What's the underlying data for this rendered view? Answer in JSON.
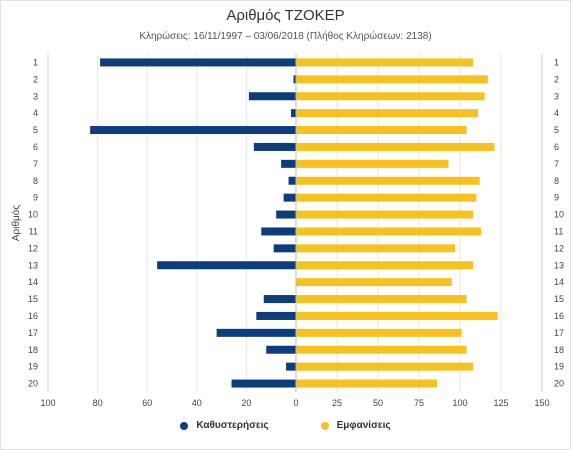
{
  "chart_data": {
    "type": "bar",
    "orientation": "horizontal-diverging",
    "title": "Αριθμός ΤΖΟΚΕΡ",
    "subtitle": "Κληρώσεις: 16/11/1997 – 03/06/2018 (Πλήθος Κληρώσεων: 2138)",
    "ylabel": "Αριθμός",
    "categories": [
      "1",
      "2",
      "3",
      "4",
      "5",
      "6",
      "7",
      "8",
      "9",
      "10",
      "11",
      "12",
      "13",
      "14",
      "15",
      "16",
      "17",
      "18",
      "19",
      "20"
    ],
    "series": [
      {
        "name": "Καθυστερήσεις",
        "color": "#0d3d7c",
        "side": "left",
        "values": [
          79,
          1,
          19,
          2,
          83,
          17,
          6,
          3,
          5,
          8,
          14,
          9,
          56,
          0,
          13,
          16,
          32,
          12,
          4,
          26
        ]
      },
      {
        "name": "Εμφανίσεις",
        "color": "#f7c21f",
        "side": "right",
        "values": [
          108,
          117,
          115,
          111,
          104,
          121,
          93,
          112,
          110,
          108,
          113,
          97,
          108,
          95,
          104,
          123,
          101,
          104,
          108,
          86
        ]
      }
    ],
    "left_axis": {
      "range": [
        100,
        0
      ],
      "ticks": [
        "100",
        "80",
        "60",
        "40",
        "20",
        "0"
      ]
    },
    "right_axis": {
      "range": [
        0,
        150
      ],
      "ticks": [
        "25",
        "50",
        "75",
        "100",
        "125",
        "150"
      ]
    },
    "grid": true,
    "legend_position": "bottom-center"
  }
}
